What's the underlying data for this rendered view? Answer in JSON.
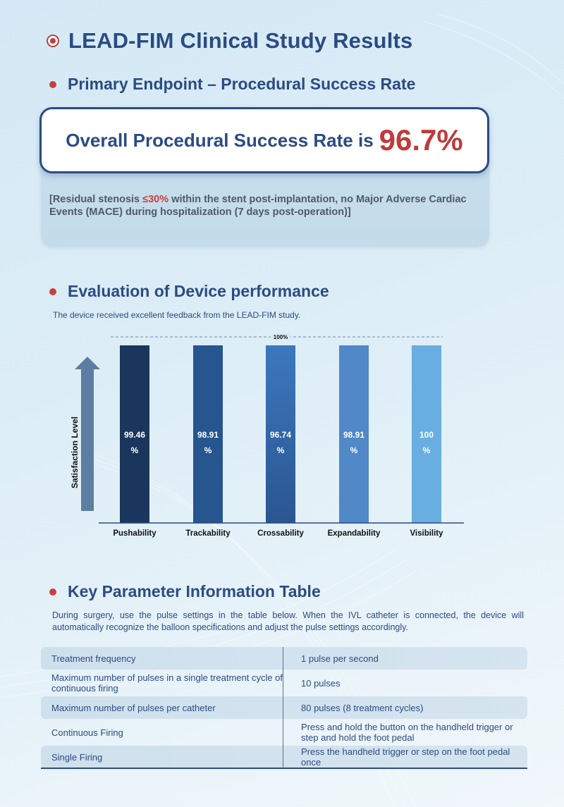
{
  "header": {
    "title": "LEAD-FIM Clinical Study Results",
    "title_icon": "target-icon"
  },
  "primary_endpoint": {
    "heading": "Primary Endpoint – Procedural Success Rate",
    "card_label": "Overall Procedural Success Rate is",
    "card_value": "96.7%",
    "note_prefix": "[Residual stenosis ",
    "note_highlight": "≤30%",
    "note_suffix": " within the stent post-implantation, no Major Adverse Cardiac Events (MACE) during hospitalization (7 days post-operation)]",
    "colors": {
      "accent": "#bf3b3b",
      "primary": "#2b4b83"
    }
  },
  "device_performance": {
    "heading": "Evaluation of Device performance",
    "subtitle": "The device received excellent feedback from the LEAD-FIM study."
  },
  "chart_data": {
    "type": "bar",
    "title": "",
    "xlabel": "",
    "ylabel": "Satisfaction Level",
    "categories": [
      "Pushability",
      "Trackability",
      "Crossability",
      "Expandability",
      "Visibility"
    ],
    "values": [
      99.46,
      98.91,
      96.74,
      98.91,
      100
    ],
    "value_labels": [
      [
        "99.46",
        "%"
      ],
      [
        "98.91",
        "%"
      ],
      [
        "96.74",
        "%"
      ],
      [
        "98.91",
        "%"
      ],
      [
        "100",
        "%"
      ]
    ],
    "reference_line": {
      "value": 100,
      "label": "100%"
    },
    "ylim": [
      0,
      100
    ],
    "grid": false,
    "legend": "none",
    "colors": [
      "#1b365d",
      "#26558f",
      "#3767a8",
      "#5088c8",
      "#68aee0"
    ]
  },
  "key_parameters": {
    "heading": "Key Parameter Information Table",
    "description": "During surgery, use the pulse settings in the table below. When the IVL catheter is connected, the device will automatically recognize the balloon specifications and adjust the pulse settings accordingly.",
    "rows": [
      {
        "param": "Treatment frequency",
        "value": "1 pulse per second"
      },
      {
        "param": "Maximum number of pulses in a single treatment cycle of continuous firing",
        "value": "10 pulses"
      },
      {
        "param": "Maximum number of pulses per catheter",
        "value": "80 pulses (8 treatment cycles)"
      },
      {
        "param": "Continuous Firing",
        "value": "Press and hold the button on the handheld trigger or step and hold the foot pedal"
      },
      {
        "param": "Single Firing",
        "value": "Press the handheld trigger or step on the foot pedal once"
      }
    ]
  }
}
